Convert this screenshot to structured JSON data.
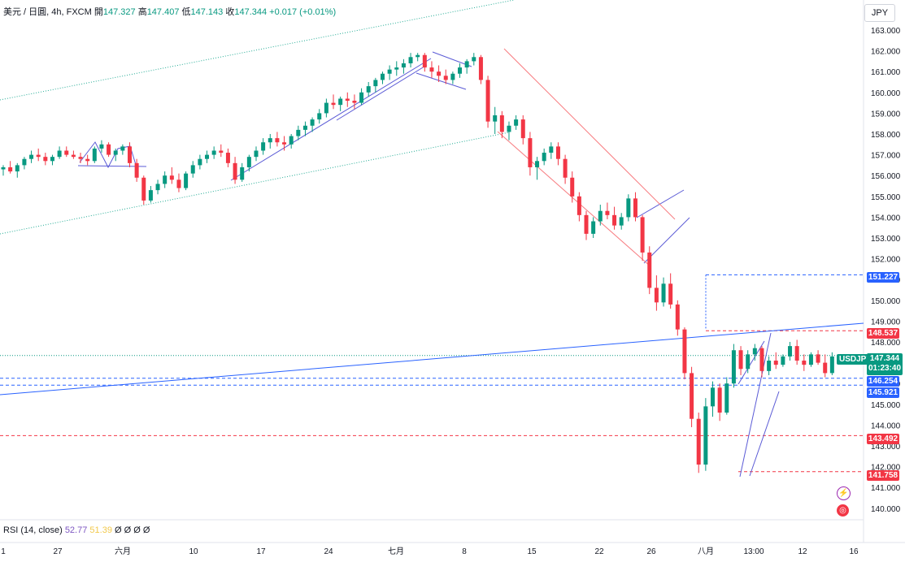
{
  "header": {
    "symbol": "美元 / 日圓, 4h, FXCM",
    "open_label": "開",
    "open": "147.327",
    "high_label": "高",
    "high": "147.407",
    "low_label": "低",
    "low": "147.143",
    "close_label": "收",
    "close": "147.344",
    "change": "+0.017 (+0.01%)"
  },
  "currency": "JPY",
  "rsi": {
    "label": "RSI (14, close)",
    "value1": "52.77",
    "value2": "51.39",
    "placeholders": "Ø Ø Ø Ø"
  },
  "price_tags": {
    "last_symbol": "USDJPY",
    "last": "147.344",
    "countdown": "01:23:40",
    "levels": [
      {
        "value": "151.227",
        "kind": "blue"
      },
      {
        "value": "148.537",
        "kind": "red"
      },
      {
        "value": "146.254",
        "kind": "blue"
      },
      {
        "value": "145.921",
        "kind": "blue"
      },
      {
        "value": "143.492",
        "kind": "red"
      },
      {
        "value": "141.758",
        "kind": "red"
      }
    ]
  },
  "colors": {
    "up": "#089981",
    "down": "#f23645",
    "line": "#2962ff",
    "trend": "#5b5bd6",
    "channel": "#f77c80",
    "dotted": "#22ab94"
  },
  "icons": [
    "lightning-icon",
    "target-icon"
  ],
  "chart_data": {
    "type": "candlestick",
    "y_axis": {
      "ticks": [
        140,
        141,
        142,
        143,
        144,
        145,
        146,
        147,
        148,
        149,
        150,
        151,
        152,
        153,
        154,
        155,
        156,
        157,
        158,
        159,
        160,
        161,
        162,
        163
      ],
      "ylim": [
        139.4,
        163.6
      ]
    },
    "x_axis": {
      "ticks": [
        "1",
        "27",
        "六月",
        "10",
        "17",
        "24",
        "七月",
        "8",
        "15",
        "22",
        "26",
        "八月",
        "13:00",
        "12",
        "16"
      ]
    },
    "series": [
      {
        "values": [
          [
            156.3,
            156.5,
            156.0,
            156.4
          ],
          [
            156.4,
            156.7,
            156.1,
            156.2
          ],
          [
            156.2,
            156.6,
            155.9,
            156.5
          ],
          [
            156.5,
            156.9,
            156.3,
            156.8
          ],
          [
            156.8,
            157.2,
            156.6,
            157.0
          ],
          [
            157.0,
            157.3,
            156.7,
            156.9
          ],
          [
            156.9,
            157.1,
            156.5,
            156.7
          ],
          [
            156.7,
            157.0,
            156.5,
            156.9
          ],
          [
            156.9,
            157.4,
            156.8,
            157.2
          ],
          [
            157.2,
            157.4,
            156.9,
            157.0
          ],
          [
            157.0,
            157.2,
            156.8,
            156.9
          ],
          [
            156.9,
            157.1,
            156.6,
            156.8
          ],
          [
            156.8,
            157.0,
            156.5,
            156.7
          ],
          [
            156.7,
            157.4,
            156.6,
            157.3
          ],
          [
            157.3,
            157.7,
            157.1,
            157.5
          ],
          [
            157.5,
            157.6,
            156.9,
            157.0
          ],
          [
            157.0,
            157.3,
            156.7,
            157.2
          ],
          [
            157.2,
            157.5,
            157.0,
            157.4
          ],
          [
            157.4,
            157.6,
            156.4,
            156.6
          ],
          [
            156.6,
            156.8,
            155.7,
            155.9
          ],
          [
            155.9,
            156.0,
            154.6,
            154.8
          ],
          [
            154.8,
            155.5,
            154.7,
            155.3
          ],
          [
            155.3,
            155.8,
            155.1,
            155.6
          ],
          [
            155.6,
            156.2,
            155.4,
            156.0
          ],
          [
            156.0,
            156.4,
            155.6,
            155.8
          ],
          [
            155.8,
            156.1,
            155.2,
            155.4
          ],
          [
            155.4,
            156.2,
            155.3,
            156.1
          ],
          [
            156.1,
            156.7,
            155.9,
            156.5
          ],
          [
            156.5,
            157.0,
            156.3,
            156.8
          ],
          [
            156.8,
            157.2,
            156.6,
            157.0
          ],
          [
            157.0,
            157.4,
            156.8,
            157.2
          ],
          [
            157.2,
            157.5,
            156.9,
            157.1
          ],
          [
            157.1,
            157.3,
            156.4,
            156.6
          ],
          [
            156.6,
            156.9,
            155.6,
            155.8
          ],
          [
            155.8,
            156.6,
            155.7,
            156.4
          ],
          [
            156.4,
            157.0,
            156.2,
            156.9
          ],
          [
            156.9,
            157.4,
            156.7,
            157.2
          ],
          [
            157.2,
            157.8,
            157.0,
            157.6
          ],
          [
            157.6,
            158.0,
            157.3,
            157.8
          ],
          [
            157.8,
            158.1,
            157.4,
            157.6
          ],
          [
            157.6,
            157.9,
            157.2,
            157.5
          ],
          [
            157.5,
            158.0,
            157.3,
            157.9
          ],
          [
            157.9,
            158.4,
            157.7,
            158.2
          ],
          [
            158.2,
            158.6,
            157.9,
            158.4
          ],
          [
            158.4,
            158.8,
            158.1,
            158.7
          ],
          [
            158.7,
            159.2,
            158.5,
            159.0
          ],
          [
            159.0,
            159.7,
            158.8,
            159.5
          ],
          [
            159.5,
            159.9,
            159.2,
            159.4
          ],
          [
            159.4,
            159.8,
            159.1,
            159.7
          ],
          [
            159.7,
            160.0,
            159.3,
            159.6
          ],
          [
            159.6,
            159.9,
            159.2,
            159.5
          ],
          [
            159.5,
            160.2,
            159.4,
            160.0
          ],
          [
            160.0,
            160.5,
            159.8,
            160.3
          ],
          [
            160.3,
            160.7,
            160.0,
            160.6
          ],
          [
            160.6,
            161.0,
            160.4,
            160.9
          ],
          [
            160.9,
            161.3,
            160.6,
            161.1
          ],
          [
            161.1,
            161.5,
            160.8,
            161.2
          ],
          [
            161.2,
            161.6,
            160.9,
            161.4
          ],
          [
            161.4,
            161.9,
            161.2,
            161.7
          ],
          [
            161.7,
            161.9,
            161.5,
            161.8
          ],
          [
            161.8,
            161.9,
            161.0,
            161.2
          ],
          [
            161.2,
            161.5,
            160.7,
            161.0
          ],
          [
            161.0,
            161.3,
            160.5,
            160.8
          ],
          [
            160.8,
            161.1,
            160.4,
            160.6
          ],
          [
            160.6,
            161.0,
            160.4,
            160.9
          ],
          [
            160.9,
            161.4,
            160.7,
            161.2
          ],
          [
            161.2,
            161.6,
            160.9,
            161.5
          ],
          [
            161.5,
            161.9,
            161.3,
            161.7
          ],
          [
            161.7,
            161.8,
            160.4,
            160.6
          ],
          [
            160.6,
            160.8,
            158.3,
            158.6
          ],
          [
            158.6,
            159.3,
            158.0,
            158.9
          ],
          [
            158.9,
            159.1,
            157.8,
            158.1
          ],
          [
            158.1,
            158.6,
            157.7,
            158.4
          ],
          [
            158.4,
            158.9,
            158.2,
            158.7
          ],
          [
            158.7,
            158.9,
            157.5,
            157.8
          ],
          [
            157.8,
            158.1,
            156.0,
            156.4
          ],
          [
            156.4,
            156.9,
            155.8,
            156.7
          ],
          [
            156.7,
            157.3,
            156.5,
            157.1
          ],
          [
            157.1,
            157.6,
            156.8,
            157.4
          ],
          [
            157.4,
            157.6,
            156.5,
            156.8
          ],
          [
            156.8,
            157.0,
            155.6,
            155.9
          ],
          [
            155.9,
            156.2,
            154.7,
            155.0
          ],
          [
            155.0,
            155.2,
            153.8,
            154.1
          ],
          [
            154.1,
            154.3,
            152.9,
            153.2
          ],
          [
            153.2,
            154.0,
            153.0,
            153.8
          ],
          [
            153.8,
            154.6,
            153.6,
            154.3
          ],
          [
            154.3,
            154.7,
            153.9,
            154.1
          ],
          [
            154.1,
            154.5,
            153.4,
            153.6
          ],
          [
            153.6,
            154.2,
            153.4,
            154.0
          ],
          [
            154.0,
            155.1,
            153.8,
            154.9
          ],
          [
            154.9,
            155.2,
            153.8,
            154.0
          ],
          [
            154.0,
            154.1,
            151.9,
            152.3
          ],
          [
            152.3,
            152.6,
            150.3,
            150.6
          ],
          [
            150.6,
            151.2,
            149.5,
            149.9
          ],
          [
            149.9,
            151.1,
            149.7,
            150.8
          ],
          [
            150.8,
            151.3,
            149.6,
            149.8
          ],
          [
            149.8,
            150.0,
            148.3,
            148.6
          ],
          [
            148.6,
            148.7,
            146.2,
            146.5
          ],
          [
            146.5,
            146.8,
            143.9,
            144.3
          ],
          [
            144.3,
            144.6,
            141.7,
            142.1
          ],
          [
            142.1,
            145.3,
            141.8,
            144.9
          ],
          [
            144.9,
            146.1,
            144.4,
            145.8
          ],
          [
            145.8,
            146.0,
            144.2,
            144.6
          ],
          [
            144.6,
            146.3,
            144.5,
            146.0
          ],
          [
            146.0,
            147.9,
            145.8,
            147.6
          ],
          [
            147.6,
            147.8,
            146.4,
            146.7
          ],
          [
            146.7,
            147.6,
            146.5,
            147.4
          ],
          [
            147.4,
            147.9,
            147.1,
            147.7
          ],
          [
            147.7,
            147.8,
            146.3,
            146.6
          ],
          [
            146.6,
            147.3,
            146.4,
            147.1
          ],
          [
            147.1,
            147.5,
            146.7,
            146.9
          ],
          [
            146.9,
            147.4,
            146.8,
            147.3
          ],
          [
            147.3,
            148.0,
            147.1,
            147.8
          ],
          [
            147.8,
            148.1,
            146.9,
            147.1
          ],
          [
            147.1,
            147.4,
            146.6,
            146.9
          ],
          [
            146.9,
            147.5,
            146.8,
            147.4
          ],
          [
            147.4,
            147.6,
            146.9,
            147.0
          ],
          [
            147.0,
            147.4,
            146.3,
            146.5
          ],
          [
            146.5,
            147.5,
            146.4,
            147.3
          ],
          [
            147.3,
            147.4,
            147.1,
            147.3
          ]
        ]
      }
    ]
  }
}
